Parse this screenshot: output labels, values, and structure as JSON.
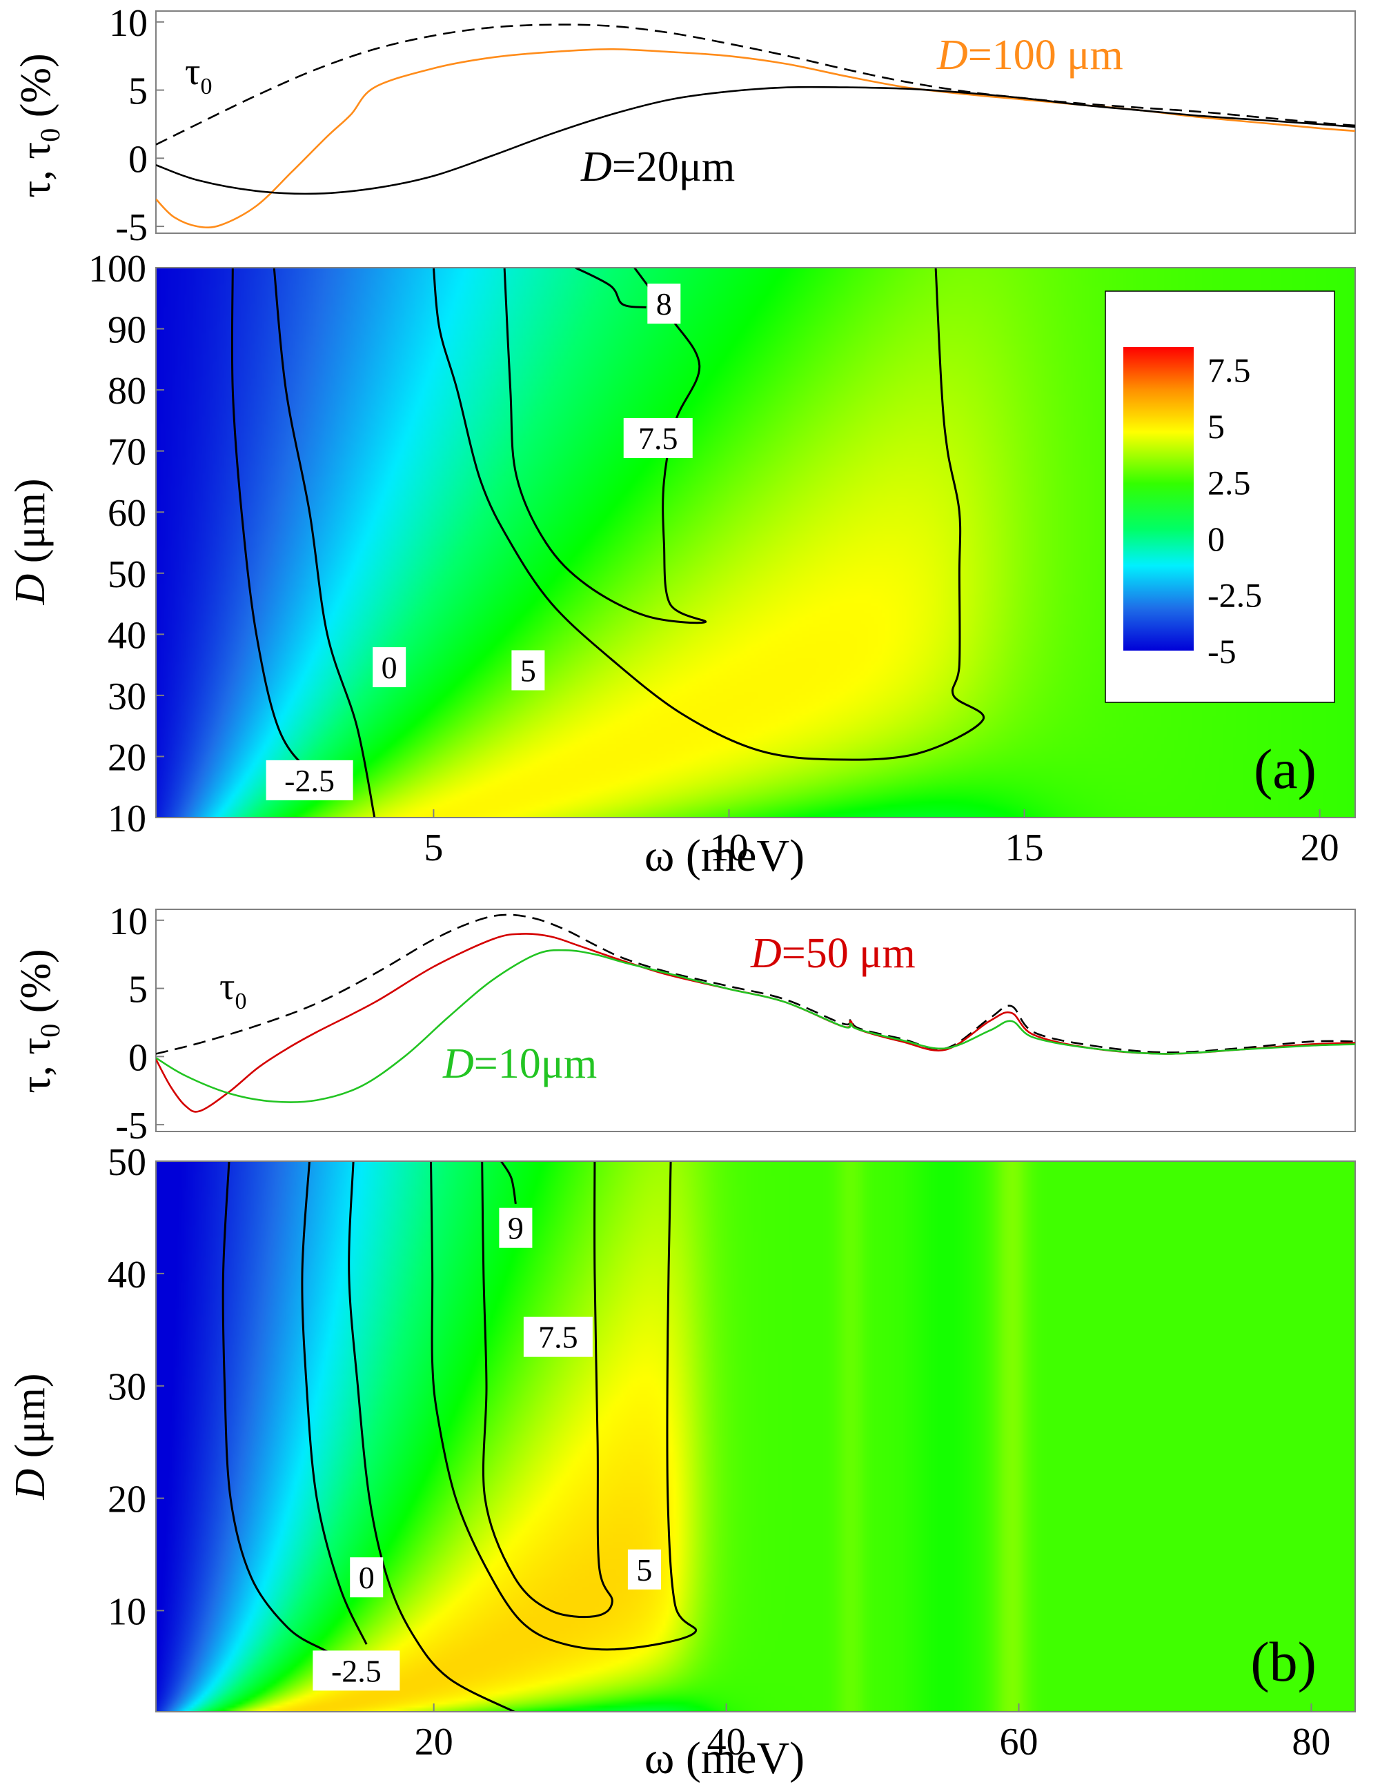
{
  "figure_title": "Transmission contrast maps",
  "colors": {
    "tau0": "#000000",
    "d100": "#ff8c1a",
    "d20": "#000000",
    "d50": "#d40000",
    "d10": "#22c422",
    "contour": "#000000",
    "cmap": [
      "#0000d8",
      "#1e6ee8",
      "#00f0ff",
      "#00ff66",
      "#00ff00",
      "#ffff00",
      "#ff9000",
      "#ff0000"
    ]
  },
  "chart_data": [
    {
      "id": "a_lines",
      "type": "line",
      "xlim": [
        0.3,
        20.6
      ],
      "ylim": [
        -5.5,
        10.8
      ],
      "yticks": [
        "10",
        "5",
        "0",
        "-5"
      ],
      "ylabel_parts": [
        "τ, τ",
        "0",
        " (%)"
      ],
      "series": [
        {
          "name": "τ0",
          "label_main": "τ",
          "label_sub": "0",
          "style": "dashed",
          "color": "#000000",
          "x": [
            0.3,
            1,
            2,
            3,
            4,
            5,
            6,
            7,
            8,
            9,
            10,
            11,
            12,
            13,
            14,
            15,
            16,
            17,
            18,
            19,
            20,
            20.6
          ],
          "y": [
            1.0,
            2.5,
            4.6,
            6.5,
            8.0,
            9.0,
            9.6,
            9.8,
            9.7,
            9.2,
            8.4,
            7.5,
            6.5,
            5.6,
            4.9,
            4.4,
            4.0,
            3.7,
            3.4,
            3.0,
            2.6,
            2.4
          ]
        },
        {
          "name": "D=100 μm",
          "label_main": "D",
          "label_rest": "=100 μm",
          "style": "solid",
          "color": "#ff8c1a",
          "x": [
            0.3,
            0.6,
            1,
            1.4,
            2,
            2.6,
            3.2,
            3.6,
            4,
            5,
            6,
            7,
            8,
            9,
            10,
            11,
            12,
            13,
            14,
            15,
            16,
            17,
            18,
            19,
            20,
            20.6
          ],
          "y": [
            -3.0,
            -4.3,
            -5.0,
            -4.9,
            -3.5,
            -1.0,
            1.6,
            3.2,
            5.2,
            6.6,
            7.4,
            7.8,
            8.0,
            7.8,
            7.5,
            6.9,
            6.0,
            5.2,
            4.7,
            4.3,
            3.9,
            3.5,
            3.0,
            2.6,
            2.2,
            2.0
          ]
        },
        {
          "name": "D=20μm",
          "label_main": "D",
          "label_rest": "=20μm",
          "style": "solid",
          "color": "#000000",
          "x": [
            0.3,
            1,
            2,
            3,
            4,
            5,
            6,
            7,
            8,
            9,
            10,
            11,
            12,
            13,
            14,
            15,
            16,
            17,
            18,
            19,
            20,
            20.6
          ],
          "y": [
            -0.5,
            -1.6,
            -2.4,
            -2.6,
            -2.2,
            -1.3,
            0.2,
            1.8,
            3.2,
            4.3,
            4.9,
            5.2,
            5.2,
            5.1,
            4.8,
            4.4,
            3.9,
            3.5,
            3.1,
            2.8,
            2.5,
            2.3
          ]
        }
      ]
    },
    {
      "id": "a_map",
      "type": "heatmap",
      "panel_label": "(a)",
      "xlim": [
        0.3,
        20.6
      ],
      "ylim": [
        10,
        100
      ],
      "xticks": [
        "5",
        "10",
        "15",
        "20"
      ],
      "yticks": [
        "100",
        "90",
        "80",
        "70",
        "60",
        "50",
        "40",
        "30",
        "20",
        "10"
      ],
      "xlabel": "ω (meV)",
      "ylabel_parts": [
        "D",
        " (μm)"
      ],
      "colorbar": {
        "ticks": [
          "7.5",
          "5",
          "2.5",
          "0",
          "-2.5",
          "-5"
        ],
        "range": [
          -5,
          8.5
        ]
      },
      "contour_labels": [
        "8",
        "7.5",
        "5",
        "0",
        "-2.5"
      ],
      "contours": [
        {
          "level": "-2.5",
          "points": [
            [
              1.6,
              100
            ],
            [
              1.6,
              80
            ],
            [
              1.75,
              60
            ],
            [
              2,
              40
            ],
            [
              2.3,
              25
            ],
            [
              2.8,
              20
            ],
            [
              3.3,
              17
            ],
            [
              3.6,
              15
            ],
            [
              2.6,
              15.3
            ],
            [
              2.2,
              20
            ]
          ],
          "open": [
            [
              1.6,
              100
            ],
            [
              1.6,
              80
            ],
            [
              1.75,
              60
            ],
            [
              2.0,
              40
            ],
            [
              2.4,
              24
            ],
            [
              3.0,
              17
            ],
            [
              3.6,
              15
            ]
          ]
        },
        {
          "level": "0",
          "open": [
            [
              2.3,
              100
            ],
            [
              2.5,
              80
            ],
            [
              2.9,
              60
            ],
            [
              3.2,
              40
            ],
            [
              3.7,
              25
            ],
            [
              4.0,
              10
            ]
          ]
        },
        {
          "level": "5",
          "open": [
            [
              5.0,
              100
            ],
            [
              5.1,
              90
            ],
            [
              5.4,
              80
            ],
            [
              5.8,
              65
            ],
            [
              6.3,
              55
            ],
            [
              7.0,
              45
            ],
            [
              8.0,
              36
            ],
            [
              9.2,
              27
            ],
            [
              10.5,
              21
            ],
            [
              11.8,
              19.5
            ],
            [
              13.2,
              20.5
            ],
            [
              14.3,
              26
            ],
            [
              13.8,
              30
            ],
            [
              13.9,
              35
            ],
            [
              13.9,
              50
            ],
            [
              13.9,
              60
            ],
            [
              13.7,
              70
            ],
            [
              13.6,
              80
            ],
            [
              13.5,
              100
            ]
          ]
        },
        {
          "level": "7.5",
          "open": [
            [
              6.2,
              100
            ],
            [
              6.3,
              80
            ],
            [
              6.4,
              66
            ],
            [
              6.9,
              55
            ],
            [
              7.6,
              48
            ],
            [
              8.6,
              43
            ],
            [
              9.6,
              42
            ],
            [
              9.0,
              45
            ],
            [
              8.9,
              55
            ],
            [
              8.9,
              65
            ],
            [
              9.1,
              75
            ],
            [
              9.5,
              84
            ],
            [
              9.0,
              92
            ],
            [
              8.4,
              100
            ]
          ]
        },
        {
          "level": "8",
          "open": [
            [
              7.4,
              100
            ],
            [
              8.0,
              97
            ],
            [
              8.2,
              94
            ],
            [
              8.6,
              93.5
            ]
          ]
        }
      ],
      "value_model": "tau(ω, D) reconstruction"
    },
    {
      "id": "b_lines",
      "type": "line",
      "xlim": [
        1,
        83
      ],
      "ylim": [
        -5.5,
        10.8
      ],
      "yticks": [
        "10",
        "5",
        "0",
        "-5"
      ],
      "ylabel_parts": [
        "τ, τ",
        "0",
        " (%)"
      ],
      "series": [
        {
          "name": "τ0",
          "label_main": "τ",
          "label_sub": "0",
          "style": "dashed",
          "color": "#000000",
          "x": [
            1,
            4,
            8,
            12,
            16,
            20,
            23,
            25,
            27,
            29,
            31,
            33,
            36,
            40,
            44,
            48,
            48.5,
            49,
            52,
            55,
            58,
            59.5,
            61,
            65,
            70,
            75,
            80,
            83
          ],
          "y": [
            0.2,
            1.0,
            2.3,
            3.9,
            6.1,
            8.6,
            10.0,
            10.4,
            10.1,
            9.3,
            8.2,
            7.2,
            6.2,
            5.2,
            4.2,
            2.4,
            2.8,
            2.1,
            1.3,
            0.6,
            2.8,
            3.7,
            1.8,
            0.8,
            0.3,
            0.6,
            1.1,
            1.1
          ]
        },
        {
          "name": "D=50 μm",
          "label_main": "D",
          "label_rest": "=50 μm",
          "style": "solid",
          "color": "#d40000",
          "x": [
            1,
            2,
            3,
            4,
            6,
            8,
            10,
            12,
            16,
            20,
            24,
            26,
            28,
            30,
            33,
            36,
            40,
            44,
            48,
            48.5,
            49,
            52,
            55,
            58,
            59.5,
            61,
            65,
            70,
            75,
            80,
            83
          ],
          "y": [
            -0.2,
            -2.2,
            -3.6,
            -4.0,
            -2.6,
            -0.8,
            0.6,
            1.8,
            4.0,
            6.6,
            8.6,
            9.0,
            8.8,
            8.1,
            7.0,
            6.0,
            5.0,
            4.0,
            2.2,
            2.6,
            2.0,
            1.1,
            0.5,
            2.6,
            3.2,
            1.6,
            0.6,
            0.2,
            0.5,
            0.9,
            1.0
          ]
        },
        {
          "name": "D=10μm",
          "label_main": "D",
          "label_rest": "=10μm",
          "style": "solid",
          "color": "#22c422",
          "x": [
            1,
            3,
            6,
            9,
            12,
            15,
            18,
            21,
            24,
            27,
            29,
            31,
            33,
            36,
            40,
            44,
            48,
            48.5,
            49,
            52,
            55,
            58,
            59.5,
            61,
            65,
            70,
            75,
            80,
            83
          ],
          "y": [
            -0.1,
            -1.4,
            -2.7,
            -3.3,
            -3.2,
            -2.2,
            0.0,
            2.9,
            5.6,
            7.5,
            7.8,
            7.5,
            6.9,
            6.1,
            5.0,
            4.0,
            2.2,
            2.4,
            2.0,
            1.2,
            0.6,
            1.9,
            2.6,
            1.4,
            0.6,
            0.2,
            0.5,
            0.8,
            0.9
          ]
        }
      ]
    },
    {
      "id": "b_map",
      "type": "heatmap",
      "panel_label": "(b)",
      "xlim": [
        1,
        83
      ],
      "ylim": [
        1,
        50
      ],
      "xticks": [
        "20",
        "40",
        "60",
        "80"
      ],
      "yticks": [
        "50",
        "40",
        "30",
        "20",
        "10"
      ],
      "xlabel": "ω (meV)",
      "ylabel_parts": [
        "D",
        " (μm)"
      ],
      "contour_labels": [
        "9",
        "7.5",
        "5",
        "0",
        "-2.5"
      ],
      "contours": [
        {
          "level": "-2.5",
          "open": [
            [
              6.0,
              50
            ],
            [
              5.6,
              40
            ],
            [
              5.7,
              30
            ],
            [
              6.1,
              20
            ],
            [
              7.5,
              13
            ],
            [
              10,
              8.5
            ],
            [
              12.5,
              6.5
            ],
            [
              14.5,
              5.4
            ]
          ]
        },
        {
          "level": "-2.5b",
          "open": [
            [
              11.5,
              50
            ],
            [
              11.0,
              40
            ],
            [
              11.3,
              30
            ],
            [
              12.0,
              20
            ],
            [
              13.6,
              12
            ],
            [
              15.4,
              7.0
            ]
          ]
        },
        {
          "level": "0",
          "open": [
            [
              14.5,
              50
            ],
            [
              14.2,
              40
            ],
            [
              14.8,
              30
            ],
            [
              15.6,
              20
            ],
            [
              16.8,
              13
            ],
            [
              18.5,
              8.0
            ],
            [
              21.0,
              4.0
            ],
            [
              25.5,
              1.0
            ]
          ]
        },
        {
          "level": "5",
          "open": [
            [
              19.8,
              50
            ],
            [
              19.9,
              40
            ],
            [
              19.9,
              32
            ],
            [
              20.3,
              27
            ],
            [
              21.5,
              20
            ],
            [
              23.5,
              14
            ],
            [
              26,
              9.0
            ],
            [
              29,
              7.0
            ],
            [
              33,
              6.6
            ],
            [
              37.8,
              8.0
            ],
            [
              36.5,
              10.5
            ],
            [
              36.0,
              20
            ],
            [
              36.0,
              35
            ],
            [
              36.2,
              50
            ]
          ]
        },
        {
          "level": "7.5",
          "open": [
            [
              23.3,
              50
            ],
            [
              23.4,
              40
            ],
            [
              23.6,
              30
            ],
            [
              23.5,
              20
            ],
            [
              25.5,
              13
            ],
            [
              28,
              10
            ],
            [
              31,
              9.5
            ],
            [
              32.2,
              10.8
            ],
            [
              31.3,
              14
            ],
            [
              31.2,
              25
            ],
            [
              31.0,
              40
            ],
            [
              31.0,
              50
            ]
          ]
        },
        {
          "level": "9",
          "open": [
            [
              24.6,
              50
            ],
            [
              25.3,
              48.5
            ],
            [
              25.6,
              46.2
            ]
          ]
        }
      ],
      "value_model": "tau(ω, D) reconstruction"
    }
  ]
}
